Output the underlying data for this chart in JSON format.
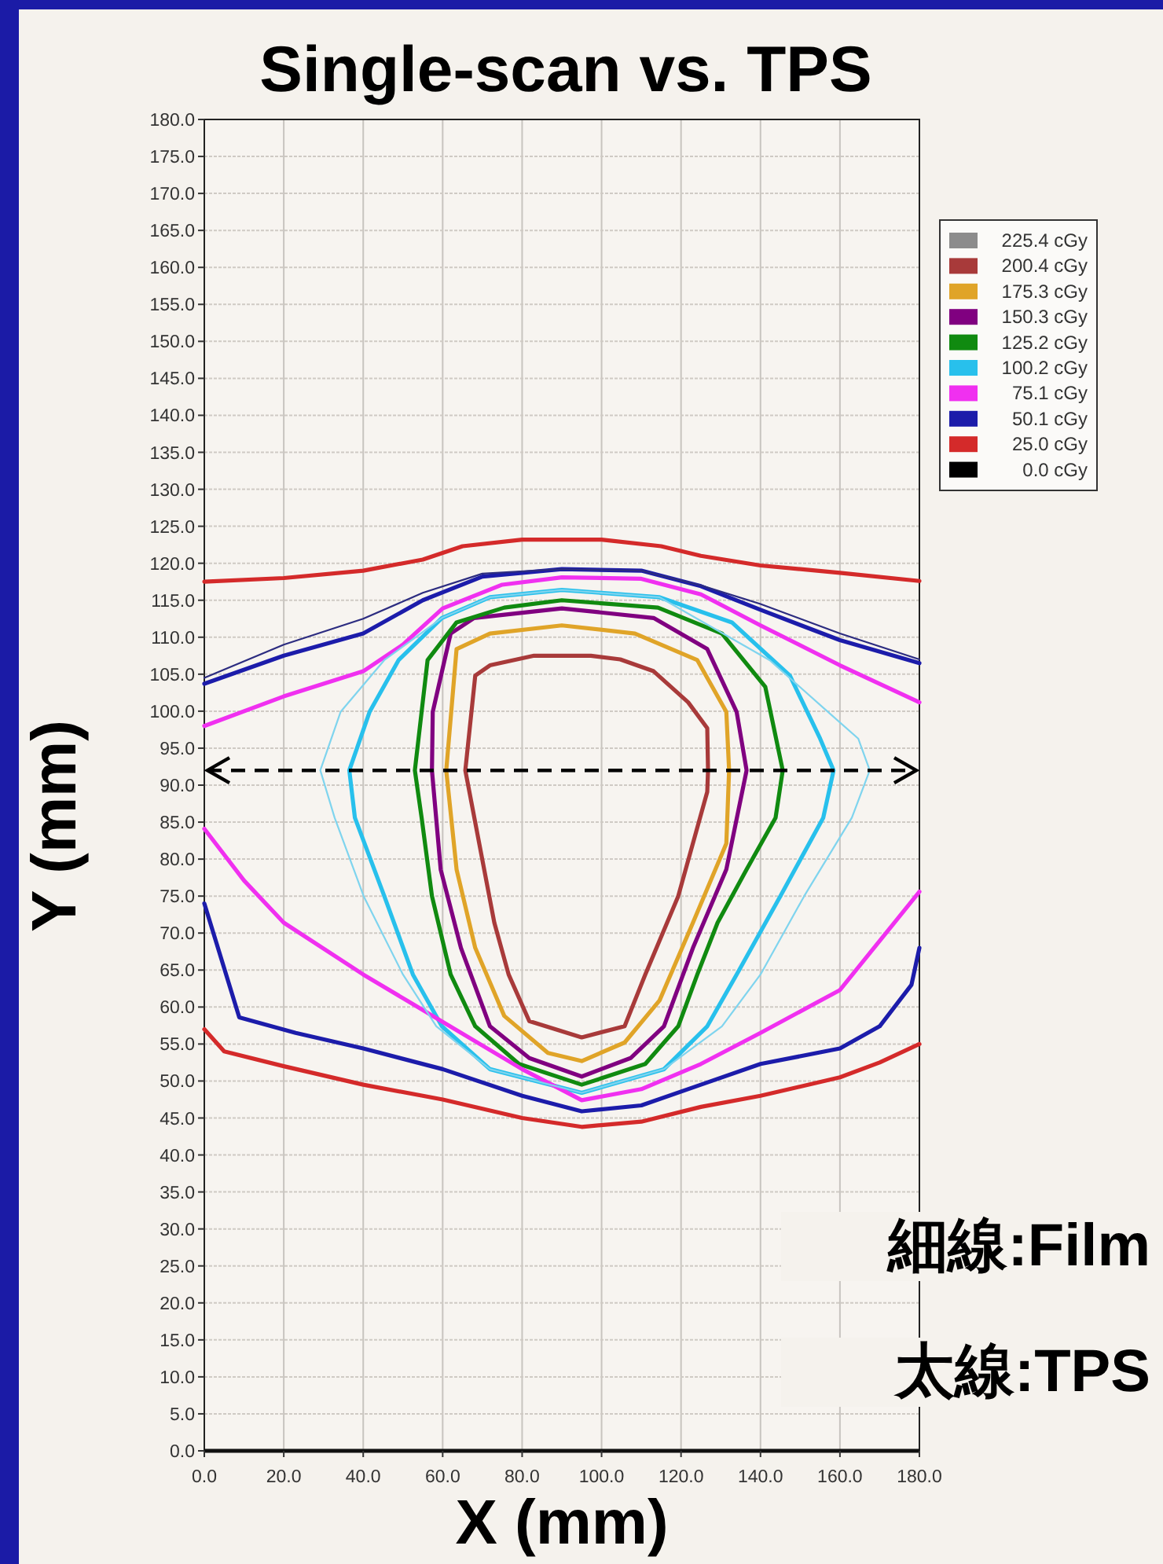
{
  "chart_data": {
    "type": "line",
    "title": "Single-scan vs. TPS",
    "xlabel": "X (mm)",
    "ylabel": "Y (mm)",
    "annotations": [
      "細線:Film",
      "太線:TPS"
    ],
    "xlim": [
      0,
      180
    ],
    "ylim": [
      0,
      180
    ],
    "xticks": [
      {
        "value": 0,
        "label": "0.0"
      },
      {
        "value": 20,
        "label": "20.0"
      },
      {
        "value": 40,
        "label": "40.0"
      },
      {
        "value": 60,
        "label": "60.0"
      },
      {
        "value": 80,
        "label": "80.0"
      },
      {
        "value": 100,
        "label": "100.0"
      },
      {
        "value": 120,
        "label": "120.0"
      },
      {
        "value": 140,
        "label": "140.0"
      },
      {
        "value": 160,
        "label": "160.0"
      },
      {
        "value": 180,
        "label": "180.0"
      }
    ],
    "yticks": [
      {
        "value": 0,
        "label": "0.0"
      },
      {
        "value": 5,
        "label": "5.0"
      },
      {
        "value": 10,
        "label": "10.0"
      },
      {
        "value": 15,
        "label": "15.0"
      },
      {
        "value": 20,
        "label": "20.0"
      },
      {
        "value": 25,
        "label": "25.0"
      },
      {
        "value": 30,
        "label": "30.0"
      },
      {
        "value": 35,
        "label": "35.0"
      },
      {
        "value": 40,
        "label": "40.0"
      },
      {
        "value": 45,
        "label": "45.0"
      },
      {
        "value": 50,
        "label": "50.0"
      },
      {
        "value": 55,
        "label": "55.0"
      },
      {
        "value": 60,
        "label": "60.0"
      },
      {
        "value": 65,
        "label": "65.0"
      },
      {
        "value": 70,
        "label": "70.0"
      },
      {
        "value": 75,
        "label": "75.0"
      },
      {
        "value": 80,
        "label": "80.0"
      },
      {
        "value": 85,
        "label": "85.0"
      },
      {
        "value": 90,
        "label": "90.0"
      },
      {
        "value": 95,
        "label": "95.0"
      },
      {
        "value": 100,
        "label": "100.0"
      },
      {
        "value": 105,
        "label": "105.0"
      },
      {
        "value": 110,
        "label": "110.0"
      },
      {
        "value": 115,
        "label": "115.0"
      },
      {
        "value": 120,
        "label": "120.0"
      },
      {
        "value": 125,
        "label": "125.0"
      },
      {
        "value": 130,
        "label": "130.0"
      },
      {
        "value": 135,
        "label": "135.0"
      },
      {
        "value": 140,
        "label": "140.0"
      },
      {
        "value": 145,
        "label": "145.0"
      },
      {
        "value": 150,
        "label": "150.0"
      },
      {
        "value": 155,
        "label": "155.0"
      },
      {
        "value": 160,
        "label": "160.0"
      },
      {
        "value": 165,
        "label": "165.0"
      },
      {
        "value": 170,
        "label": "170.0"
      },
      {
        "value": 175,
        "label": "175.0"
      },
      {
        "value": 180,
        "label": "180.0"
      }
    ],
    "ref_lines": [
      {
        "axis": "y",
        "value": 92,
        "color": "#000000",
        "line_style": "dashed"
      }
    ],
    "grid": true,
    "legend": "top right",
    "marker": "none",
    "line_style": "solid",
    "series": [
      {
        "name": "225.4 cGy",
        "color": "#8c8c8c"
      },
      {
        "name": "200.4 cGy",
        "color": "#a83a3a",
        "x": [
          65.7,
          68.2,
          71.9,
          83,
          97.3,
          104.7,
          113.1,
          121.8,
          126.6,
          126.8,
          null,
          65.7,
          73,
          76.6,
          81.8,
          95,
          105.8,
          111,
          119.3,
          126.6,
          126.8
        ],
        "values": [
          92,
          104.8,
          106.2,
          107.5,
          107.5,
          107,
          105.4,
          101.2,
          97.7,
          92,
          null,
          92,
          71.4,
          64.4,
          58.1,
          55.9,
          57.4,
          64.4,
          75,
          89.1,
          92
        ]
      },
      {
        "name": "175.3 cGy",
        "color": "#e0a428",
        "x": [
          60.9,
          63.5,
          71.9,
          90,
          108.4,
          124.1,
          131.4,
          132.1,
          null,
          60.9,
          63.5,
          68.2,
          75.5,
          86.5,
          95,
          105.8,
          114.6,
          123,
          131.4,
          132.1
        ],
        "values": [
          92,
          108.4,
          110.5,
          111.6,
          110.5,
          106.9,
          99.9,
          92,
          null,
          92,
          78.6,
          68,
          58.8,
          53.8,
          52.7,
          55.2,
          60.9,
          71.4,
          82.1,
          92
        ]
      },
      {
        "name": "150.3 cGy",
        "color": "#800080",
        "x": [
          57.3,
          57.5,
          62,
          67.9,
          90,
          113.1,
          126.6,
          134,
          136.5,
          null,
          57.3,
          59.5,
          64.6,
          71.9,
          81.8,
          95,
          107.3,
          115.7,
          123,
          131.4,
          136.5
        ],
        "values": [
          92,
          99.9,
          110.5,
          112.6,
          113.9,
          112.6,
          108.4,
          99.9,
          92,
          null,
          92,
          78.6,
          68,
          57.4,
          53.1,
          50.6,
          53.1,
          57.4,
          68,
          78.6,
          92
        ]
      },
      {
        "name": "125.2 cGy",
        "color": "#108a10",
        "x": [
          53,
          56.2,
          63.5,
          75.5,
          90,
          114.2,
          130.3,
          141.2,
          145.6,
          null,
          53,
          54.7,
          57.3,
          62,
          68.2,
          79.2,
          95,
          111,
          119.3,
          124.1,
          129.2,
          136.5,
          143.8,
          145.6
        ],
        "values": [
          92,
          106.9,
          112,
          114,
          115,
          114,
          110.5,
          103.3,
          92,
          null,
          92,
          85.6,
          75,
          64.4,
          57.4,
          52.3,
          49.5,
          52.3,
          57.4,
          64.4,
          71.4,
          78.6,
          85.6,
          92
        ]
      },
      {
        "name": "100.2 cGy",
        "color": "#28c0ec",
        "x": [
          36.5,
          41.6,
          48.9,
          59.8,
          71.9,
          90,
          114.6,
          132.8,
          147.4,
          155,
          158.4,
          null,
          36.5,
          37.9,
          45.3,
          52.5,
          59.8,
          71.9,
          95,
          115.7,
          126.6,
          134,
          145,
          155.8,
          158.4
        ],
        "values": [
          92,
          99.9,
          106.9,
          112.6,
          115.4,
          116.4,
          115.4,
          112,
          104.8,
          96.3,
          92,
          null,
          92,
          85.6,
          75,
          64.4,
          57.4,
          51.6,
          48.4,
          51.6,
          57.4,
          64.4,
          75,
          85.6,
          92
        ]
      },
      {
        "name": "75.1 cGy",
        "color": "#f030f0",
        "x": [
          0,
          20,
          40,
          50,
          60,
          75,
          90,
          110,
          125,
          140,
          160,
          180,
          null,
          0,
          10,
          20,
          40,
          60,
          80,
          95,
          110,
          125,
          140,
          160,
          180
        ],
        "values": [
          98,
          102,
          105.4,
          109,
          113.9,
          117.1,
          118.1,
          117.9,
          115.8,
          111.6,
          106.2,
          101.2,
          null,
          84.1,
          77.1,
          71.4,
          64.4,
          58,
          51.6,
          47.4,
          48.9,
          52.3,
          56.5,
          62.3,
          75.6
        ]
      },
      {
        "name": "50.1 cGy",
        "color": "#1c1caa",
        "x": [
          0,
          20,
          40,
          55,
          70,
          90,
          110,
          125,
          140,
          160,
          180,
          null,
          0,
          8.8,
          23,
          40,
          60,
          80,
          95,
          110,
          125,
          140,
          160,
          170,
          178,
          180
        ],
        "values": [
          103.7,
          107.5,
          110.5,
          115,
          118.2,
          119.2,
          119,
          116.9,
          113.7,
          109.6,
          106.5,
          null,
          74,
          58.6,
          56.5,
          54.4,
          51.6,
          48,
          45.9,
          46.7,
          49.5,
          52.3,
          54.4,
          57.4,
          63,
          68
        ]
      },
      {
        "name": "25.0 cGy",
        "color": "#d42a2a",
        "x": [
          0,
          20,
          40,
          55,
          65,
          80,
          100,
          115,
          125,
          140,
          160,
          180,
          null,
          0,
          5,
          20,
          40,
          60,
          80,
          95,
          110,
          125,
          140,
          160,
          170,
          180
        ],
        "values": [
          117.5,
          118,
          119,
          120.5,
          122.3,
          123.2,
          123.2,
          122.3,
          121,
          119.7,
          118.7,
          117.6,
          null,
          57,
          54,
          52,
          49.5,
          47.5,
          45,
          43.8,
          44.5,
          46.5,
          48,
          50.5,
          52.5,
          55
        ]
      },
      {
        "name": "0.0 cGy",
        "color": "#000000"
      },
      {
        "color": "#7fd4ee",
        "x": [
          29.2,
          34.3,
          45.3,
          59.8,
          71.9,
          90,
          114.6,
          142.3,
          157,
          164.6,
          167.5,
          null,
          29.2,
          32.8,
          40.1,
          50,
          58.4,
          71.9,
          95,
          115.7,
          130.3,
          140,
          151,
          163,
          167.5
        ],
        "values": [
          92,
          99.9,
          106.9,
          112.6,
          115.4,
          116.4,
          115.4,
          106.9,
          99.9,
          96.3,
          92,
          null,
          92,
          85.6,
          75,
          64.4,
          57.4,
          51.6,
          48.4,
          51.6,
          57.4,
          64.4,
          75,
          85.6,
          92
        ]
      },
      {
        "color": "#2c2c80",
        "x": [
          0,
          20,
          40,
          55,
          70,
          90,
          110,
          125,
          140,
          160,
          180
        ],
        "values": [
          104.5,
          109,
          112.5,
          116,
          118.6,
          119.2,
          119,
          117,
          114.5,
          110.5,
          107
        ]
      }
    ]
  }
}
